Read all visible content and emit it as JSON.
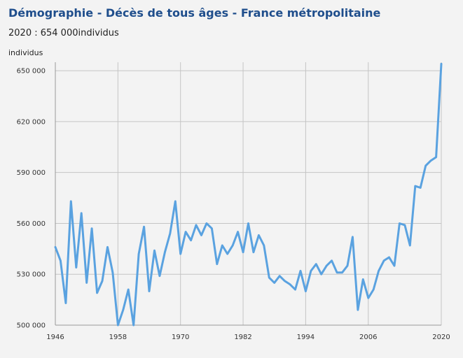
{
  "chart_data": {
    "type": "line",
    "title": "Démographie - Décès de tous âges - France métropolitaine",
    "subtitle": "2020 : 654 000individus",
    "ylabel": "individus",
    "xlabel": "",
    "ylim": [
      500000,
      655000
    ],
    "xlim": [
      1946,
      2020
    ],
    "grid": true,
    "x_ticks": [
      1946,
      1958,
      1970,
      1982,
      1994,
      2006,
      2020
    ],
    "y_ticks": [
      500000,
      530000,
      560000,
      590000,
      620000,
      650000
    ],
    "y_tick_labels": [
      "500 000",
      "530 000",
      "560 000",
      "590 000",
      "620 000",
      "650 000"
    ],
    "line_color": "#5aa2e0",
    "series": [
      {
        "x": [
          1946,
          1947,
          1948,
          1949,
          1950,
          1951,
          1952,
          1953,
          1954,
          1955,
          1956,
          1957,
          1958,
          1959,
          1960,
          1961,
          1962,
          1963,
          1964,
          1965,
          1966,
          1967,
          1968,
          1969,
          1970,
          1971,
          1972,
          1973,
          1974,
          1975,
          1976,
          1977,
          1978,
          1979,
          1980,
          1981,
          1982,
          1983,
          1984,
          1985,
          1986,
          1987,
          1988,
          1989,
          1990,
          1991,
          1992,
          1993,
          1994,
          1995,
          1996,
          1997,
          1998,
          1999,
          2000,
          2001,
          2002,
          2003,
          2004,
          2005,
          2006,
          2007,
          2008,
          2009,
          2010,
          2011,
          2012,
          2013,
          2014,
          2015,
          2016,
          2017,
          2018,
          2019,
          2020
        ],
        "values": [
          546000,
          538000,
          513000,
          573000,
          534000,
          566000,
          525000,
          557000,
          519000,
          526000,
          546000,
          531000,
          500000,
          509000,
          521000,
          500000,
          542000,
          558000,
          520000,
          544000,
          529000,
          543000,
          554000,
          573000,
          542000,
          555000,
          550000,
          559000,
          553000,
          560000,
          557000,
          536000,
          547000,
          542000,
          547000,
          555000,
          543000,
          560000,
          543000,
          553000,
          547000,
          528000,
          525000,
          529000,
          526000,
          524000,
          521000,
          532000,
          520000,
          532000,
          536000,
          530000,
          535000,
          538000,
          531000,
          531000,
          535000,
          552000,
          509000,
          527000,
          516000,
          521000,
          532000,
          538000,
          540000,
          535000,
          560000,
          559000,
          547000,
          582000,
          581000,
          594000,
          597000,
          599000,
          654000
        ]
      }
    ]
  }
}
